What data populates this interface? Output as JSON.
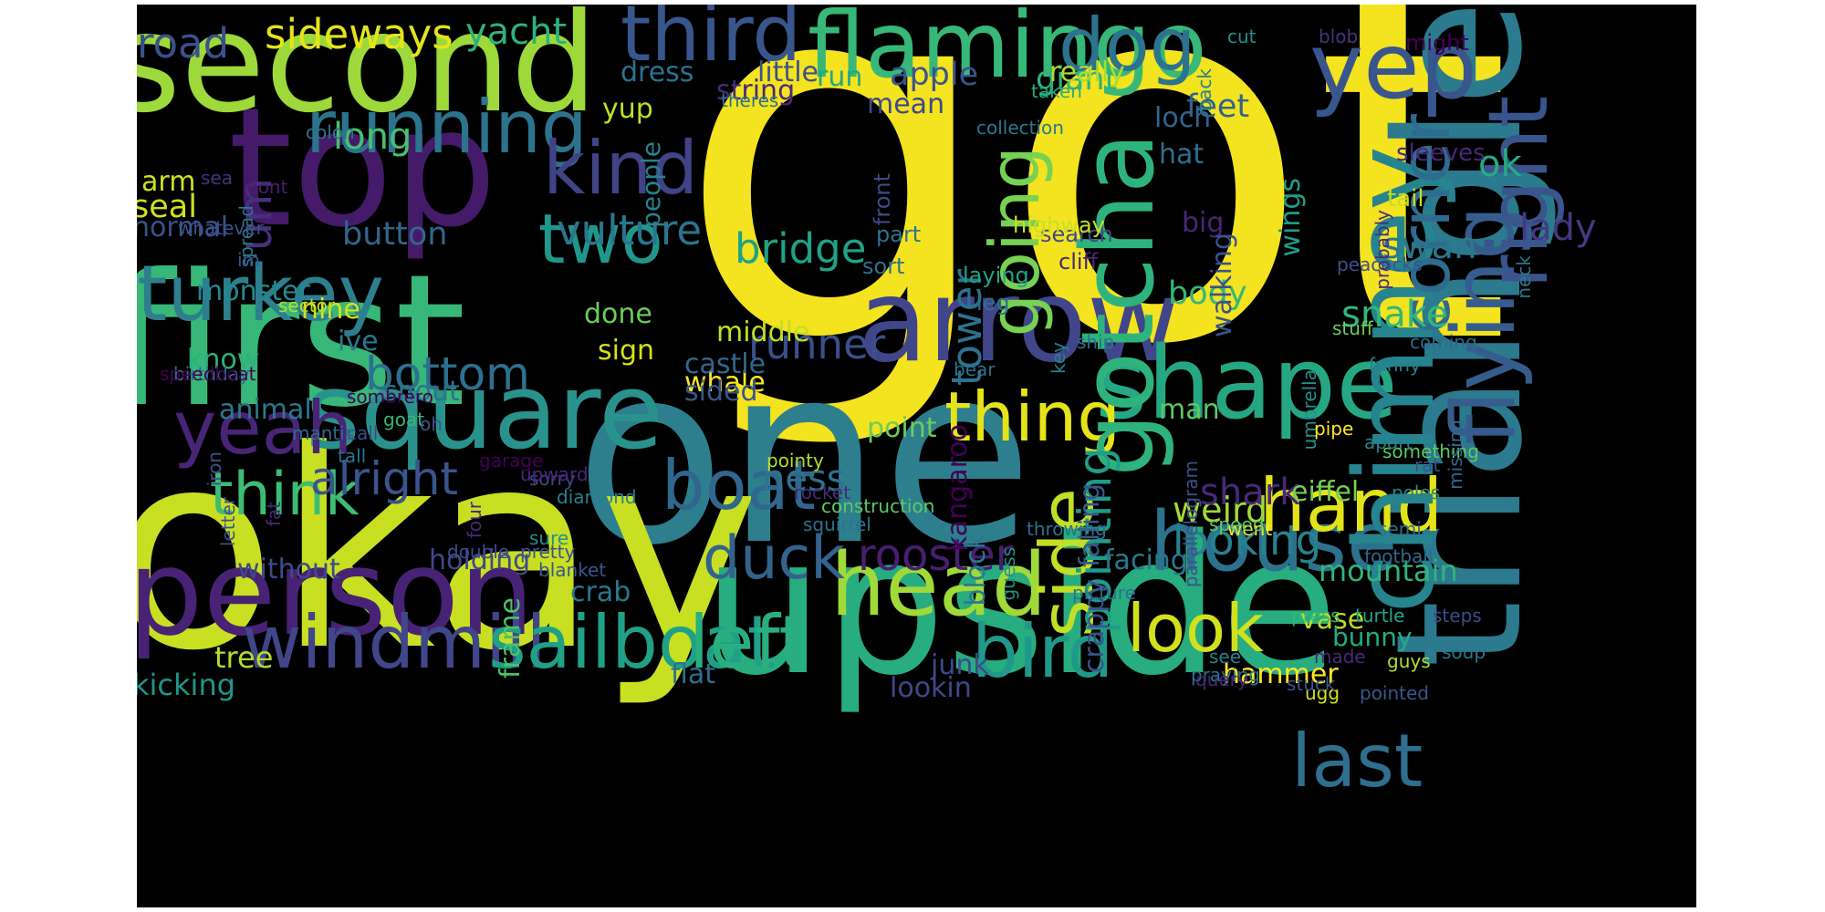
{
  "words": [
    {
      "t": "got",
      "c": "#f4e31f"
    },
    {
      "t": "one",
      "c": "#2d7f8e"
    },
    {
      "t": "okay",
      "c": "#c8df22"
    },
    {
      "t": "upside",
      "c": "#27ad80"
    },
    {
      "t": "first",
      "c": "#37b878"
    },
    {
      "t": "triangle",
      "c": "#2b7a8e"
    },
    {
      "t": "top",
      "c": "#451a69"
    },
    {
      "t": "second",
      "c": "#9dd93b"
    },
    {
      "t": "person",
      "c": "#482274"
    },
    {
      "t": "arrow",
      "c": "#404689"
    },
    {
      "t": "square",
      "c": "#2a928c"
    },
    {
      "t": "flamingo",
      "c": "#37b878"
    },
    {
      "t": "head",
      "c": "#a0da39"
    },
    {
      "t": "turkey",
      "c": "#2d7f8e"
    },
    {
      "t": "shape",
      "c": "#26a784"
    },
    {
      "t": "yep",
      "c": "#39568c"
    },
    {
      "t": "third",
      "c": "#39568c"
    },
    {
      "t": "thing",
      "c": "#e5e419"
    },
    {
      "t": "windmill",
      "c": "#404689"
    },
    {
      "t": "sailboat",
      "c": "#1fa187"
    },
    {
      "t": "left",
      "c": "#29ae80"
    },
    {
      "t": "bird",
      "c": "#1f9a8a"
    },
    {
      "t": "look",
      "c": "#d1e11c"
    },
    {
      "t": "running",
      "c": "#2c738e"
    },
    {
      "t": "kind",
      "c": "#414387"
    },
    {
      "t": "two",
      "c": "#1f988b"
    },
    {
      "t": "yeah",
      "c": "#482576"
    },
    {
      "t": "boat",
      "c": "#31668e"
    },
    {
      "t": "house",
      "c": "#2c728e"
    },
    {
      "t": "last",
      "c": "#2e6f8e"
    },
    {
      "t": "think",
      "c": "#3dbc74"
    },
    {
      "t": "side",
      "c": "#c0df25"
    },
    {
      "t": "hand",
      "c": "#e2e418"
    },
    {
      "t": "gotcha",
      "c": "#2eb37c"
    },
    {
      "t": "dog",
      "c": "#2c738e"
    },
    {
      "t": "duck",
      "c": "#33638d"
    },
    {
      "t": "chimney",
      "c": "#25848e"
    },
    {
      "t": "flying",
      "c": "#365c8d"
    },
    {
      "t": "right",
      "c": "#3a548c"
    },
    {
      "t": "corner",
      "c": "#2f6b8e"
    },
    {
      "t": "going",
      "c": "#77d153"
    },
    {
      "t": "um",
      "c": "#46307e"
    },
    {
      "t": "bottom",
      "c": "#2d708e"
    },
    {
      "t": "alright",
      "c": "#3a548c"
    },
    {
      "t": "rooster",
      "c": "#481f70"
    },
    {
      "t": "pointing",
      "c": "#1e9d89"
    },
    {
      "t": "looking",
      "c": "#26828e"
    },
    {
      "t": "bridge",
      "c": "#1fa287"
    },
    {
      "t": "tower",
      "c": "#2c738e"
    },
    {
      "t": "runner",
      "c": "#3c4f8a"
    },
    {
      "t": "vulture",
      "c": "#2b758e"
    },
    {
      "t": "sideways",
      "c": "#e5e419"
    },
    {
      "t": "road",
      "c": "#3b518b"
    },
    {
      "t": "yacht",
      "c": "#2db27d"
    },
    {
      "t": "long",
      "c": "#46c06f"
    },
    {
      "t": "ness",
      "c": "#2c738e"
    },
    {
      "t": "weird",
      "c": "#a2da37"
    },
    {
      "t": "shark",
      "c": "#482878"
    },
    {
      "t": "snake",
      "c": "#32b67a"
    },
    {
      "t": "swan",
      "c": "#2a788e"
    },
    {
      "t": "lady",
      "c": "#443983"
    },
    {
      "t": "ok",
      "c": "#25ab82"
    },
    {
      "t": "body",
      "c": "#34b679"
    },
    {
      "t": "button",
      "c": "#31668e"
    },
    {
      "t": "seal",
      "c": "#cde11d"
    },
    {
      "t": "dress",
      "c": "#2c728e"
    },
    {
      "t": "apple",
      "c": "#3a548c"
    },
    {
      "t": "giant",
      "c": "#2db27d"
    },
    {
      "t": "feet",
      "c": "#33638d"
    },
    {
      "t": "loch",
      "c": "#32648e"
    },
    {
      "t": "hat",
      "c": "#2e6e8e"
    },
    {
      "t": "man",
      "c": "#5cc863"
    },
    {
      "t": "eiffel",
      "c": "#73d056"
    },
    {
      "t": "tree",
      "c": "#b2dd2d"
    },
    {
      "t": "kicking",
      "c": "#1f968b"
    },
    {
      "t": "arm",
      "c": "#cde11d"
    },
    {
      "t": "normal",
      "c": "#3b528b"
    },
    {
      "t": "monster",
      "c": "#23898e"
    },
    {
      "t": "nine",
      "c": "#d5e21a"
    },
    {
      "t": "ive",
      "c": "#2a788e"
    },
    {
      "t": "know",
      "c": "#2db27d"
    },
    {
      "t": "snout",
      "c": "#2c738e"
    },
    {
      "t": "done",
      "c": "#6ccd5a"
    },
    {
      "t": "sign",
      "c": "#d5e21a"
    },
    {
      "t": "animal",
      "c": "#2a788e"
    },
    {
      "t": "whale",
      "c": "#fde725"
    },
    {
      "t": "little",
      "c": "#3b518b"
    },
    {
      "t": "run",
      "c": "#22a785"
    },
    {
      "t": "really",
      "c": "#aadc32"
    },
    {
      "t": "mean",
      "c": "#3e4a89"
    },
    {
      "t": "string",
      "c": "#472a7a"
    },
    {
      "t": "yup",
      "c": "#c2df23"
    },
    {
      "t": "wings",
      "c": "#1f9e89"
    },
    {
      "t": "big",
      "c": "#482677"
    },
    {
      "t": "walking",
      "c": "#3b528b"
    },
    {
      "t": "block",
      "c": "#2a788e"
    },
    {
      "t": "falling",
      "c": "#39568c"
    },
    {
      "t": "kangaroo",
      "c": "#440154"
    },
    {
      "t": "crappy",
      "c": "#3b528b"
    },
    {
      "t": "junk",
      "c": "#3e4a89"
    },
    {
      "t": "facing",
      "c": "#2a788e"
    },
    {
      "t": "mountain",
      "c": "#31b57b"
    },
    {
      "t": "vase",
      "c": "#bddf26"
    },
    {
      "t": "bunny",
      "c": "#25ab82"
    },
    {
      "t": "hammer",
      "c": "#fde725"
    },
    {
      "t": "lookin",
      "c": "#3f4889"
    },
    {
      "t": "frame",
      "c": "#4ac16d"
    },
    {
      "t": "crab",
      "c": "#2a788e"
    },
    {
      "t": "flat",
      "c": "#2d708e"
    },
    {
      "t": "holding",
      "c": "#3f4889"
    },
    {
      "t": "without",
      "c": "#3e4a89"
    },
    {
      "t": "middle",
      "c": "#c2df23"
    },
    {
      "t": "castle",
      "c": "#31688e"
    },
    {
      "t": "sided",
      "c": "#39568c"
    },
    {
      "t": "point",
      "c": "#6ccd5a"
    },
    {
      "t": "search",
      "c": "#3f4889"
    },
    {
      "t": "cliff",
      "c": "#482878"
    },
    {
      "t": "laying",
      "c": "#20a486"
    },
    {
      "t": "leg",
      "c": "#2d708e"
    },
    {
      "t": "highway",
      "c": "#c8e020"
    },
    {
      "t": "part",
      "c": "#2c738e"
    },
    {
      "t": "sort",
      "c": "#2c728e"
    },
    {
      "t": "front",
      "c": "#3e4a89"
    },
    {
      "t": "people",
      "c": "#26828e"
    },
    {
      "t": "spread",
      "c": "#2a788e"
    },
    {
      "t": "sea",
      "c": "#46327e"
    },
    {
      "t": "im",
      "c": "#39568c"
    },
    {
      "t": "sector",
      "c": "#b2dd2d"
    },
    {
      "t": "whatever",
      "c": "#3b528b"
    },
    {
      "t": "dont",
      "c": "#481f70"
    },
    {
      "t": "colon",
      "c": "#2c738e"
    },
    {
      "t": "theres",
      "c": "#2c728e"
    },
    {
      "t": "collection",
      "c": "#2a788e"
    },
    {
      "t": "taken",
      "c": "#26ad81"
    },
    {
      "t": "back",
      "c": "#26828e"
    },
    {
      "t": "cut",
      "c": "#21918c"
    },
    {
      "t": "blob",
      "c": "#46327e"
    },
    {
      "t": "might",
      "c": "#440154"
    },
    {
      "t": "sleeves",
      "c": "#482878"
    },
    {
      "t": "tail",
      "c": "#c2df23"
    },
    {
      "t": "peacocks",
      "c": "#3b528b"
    },
    {
      "t": "probably",
      "c": "#472d7b"
    },
    {
      "t": "neck",
      "c": "#2a788e"
    },
    {
      "t": "coming",
      "c": "#31688e"
    },
    {
      "t": "funny",
      "c": "#26828e"
    },
    {
      "t": "umbrella",
      "c": "#21918c"
    },
    {
      "t": "stuff",
      "c": "#6ccd5a"
    },
    {
      "t": "pipe",
      "c": "#fde725"
    },
    {
      "t": "something",
      "c": "#5ec962"
    },
    {
      "t": "missing",
      "c": "#31688e"
    },
    {
      "t": "apart",
      "c": "#26828e"
    },
    {
      "t": "rat",
      "c": "#3b528b"
    },
    {
      "t": "poles",
      "c": "#26828e"
    },
    {
      "t": "semi",
      "c": "#2c728e"
    },
    {
      "t": "football",
      "c": "#31688e"
    },
    {
      "t": "turtle",
      "c": "#22a884"
    },
    {
      "t": "made",
      "c": "#482878"
    },
    {
      "t": "guys",
      "c": "#b2dd2d"
    },
    {
      "t": "steps",
      "c": "#3e4a89"
    },
    {
      "t": "soup",
      "c": "#2a788e"
    },
    {
      "t": "pointed",
      "c": "#39568c"
    },
    {
      "t": "ugg",
      "c": "#d5e21a"
    },
    {
      "t": "praying",
      "c": "#2c728e"
    },
    {
      "t": "query",
      "c": "#482878"
    },
    {
      "t": "see",
      "c": "#26828e"
    },
    {
      "t": "press",
      "c": "#35b779"
    },
    {
      "t": "stuck",
      "c": "#3b528b"
    },
    {
      "t": "went",
      "c": "#fde725"
    },
    {
      "t": "speed",
      "c": "#5ec962"
    },
    {
      "t": "parallelogram",
      "c": "#3b528b"
    },
    {
      "t": "picture",
      "c": "#2c728e"
    },
    {
      "t": "throwing",
      "c": "#2c728e"
    },
    {
      "t": "ship",
      "c": "#2c728e"
    },
    {
      "t": "guess",
      "c": "#21918c"
    },
    {
      "t": "key",
      "c": "#26828e"
    },
    {
      "t": "bear",
      "c": "#2c728e"
    },
    {
      "t": "rocket",
      "c": "#482878"
    },
    {
      "t": "squirrel",
      "c": "#2c728e"
    },
    {
      "t": "construction",
      "c": "#5ec962"
    },
    {
      "t": "pointy",
      "c": "#b2dd2d"
    },
    {
      "t": "sorry",
      "c": "#3e4a89"
    },
    {
      "t": "upward",
      "c": "#482878"
    },
    {
      "t": "diamond",
      "c": "#26828e"
    },
    {
      "t": "four",
      "c": "#482878"
    },
    {
      "t": "sure",
      "c": "#21918c"
    },
    {
      "t": "pretty",
      "c": "#3b528b"
    },
    {
      "t": "blanket",
      "c": "#39568c"
    },
    {
      "t": "double",
      "c": "#3e4a89"
    },
    {
      "t": "garage",
      "c": "#440154"
    },
    {
      "t": "goat",
      "c": "#35b779"
    },
    {
      "t": "oh",
      "c": "#3b528b"
    },
    {
      "t": "sombrero",
      "c": "#440154"
    },
    {
      "t": "tall",
      "c": "#2c728e"
    },
    {
      "t": "call",
      "c": "#3e4a89"
    },
    {
      "t": "mantis",
      "c": "#31688e"
    },
    {
      "t": "iron",
      "c": "#3b528b"
    },
    {
      "t": "fat",
      "c": "#482878"
    },
    {
      "t": "birthday",
      "c": "#2c728e"
    },
    {
      "t": "speedboat",
      "c": "#440154"
    },
    {
      "t": "letter",
      "c": "#3b528b"
    }
  ]
}
